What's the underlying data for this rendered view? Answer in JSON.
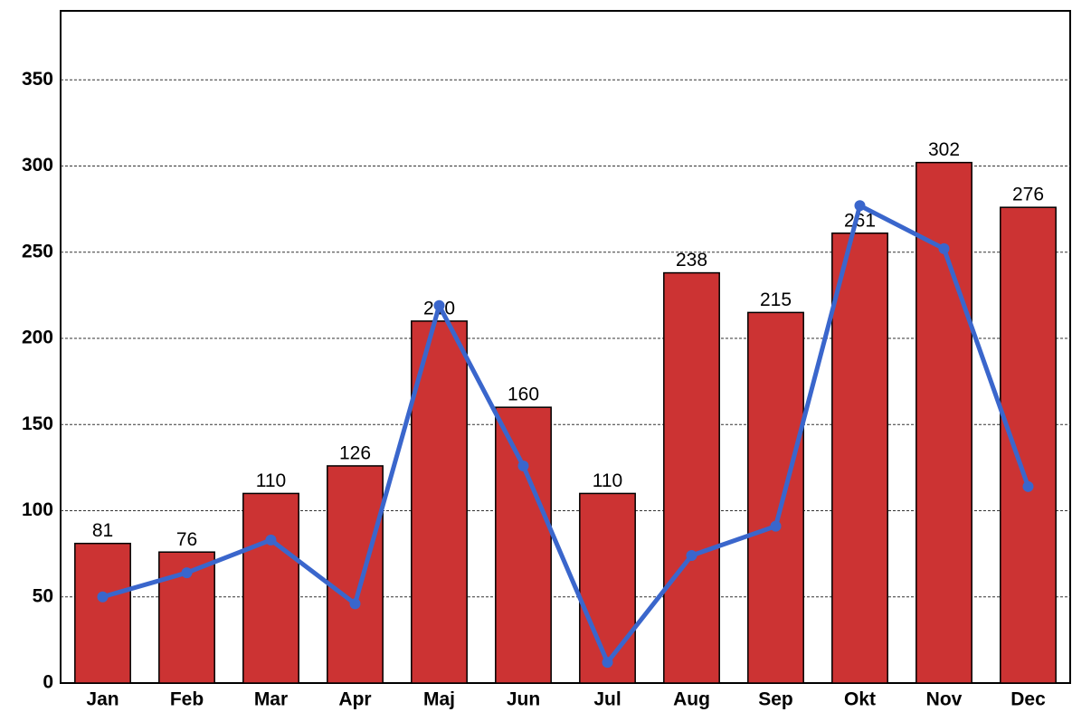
{
  "chart_data": {
    "type": "bar",
    "categories": [
      "Jan",
      "Feb",
      "Mar",
      "Apr",
      "Maj",
      "Jun",
      "Jul",
      "Aug",
      "Sep",
      "Okt",
      "Nov",
      "Dec"
    ],
    "series": [
      {
        "type": "bar",
        "color": "#cc3333",
        "values": [
          81,
          76,
          110,
          126,
          210,
          160,
          110,
          238,
          215,
          261,
          302,
          276
        ]
      },
      {
        "type": "line",
        "color": "#3a66cc",
        "values": [
          50,
          64,
          83,
          46,
          219,
          126,
          12,
          74,
          91,
          277,
          252,
          114
        ]
      }
    ],
    "ylim": [
      0,
      390
    ],
    "yticks": [
      0,
      50,
      100,
      150,
      200,
      250,
      300,
      350
    ],
    "grid": true
  }
}
